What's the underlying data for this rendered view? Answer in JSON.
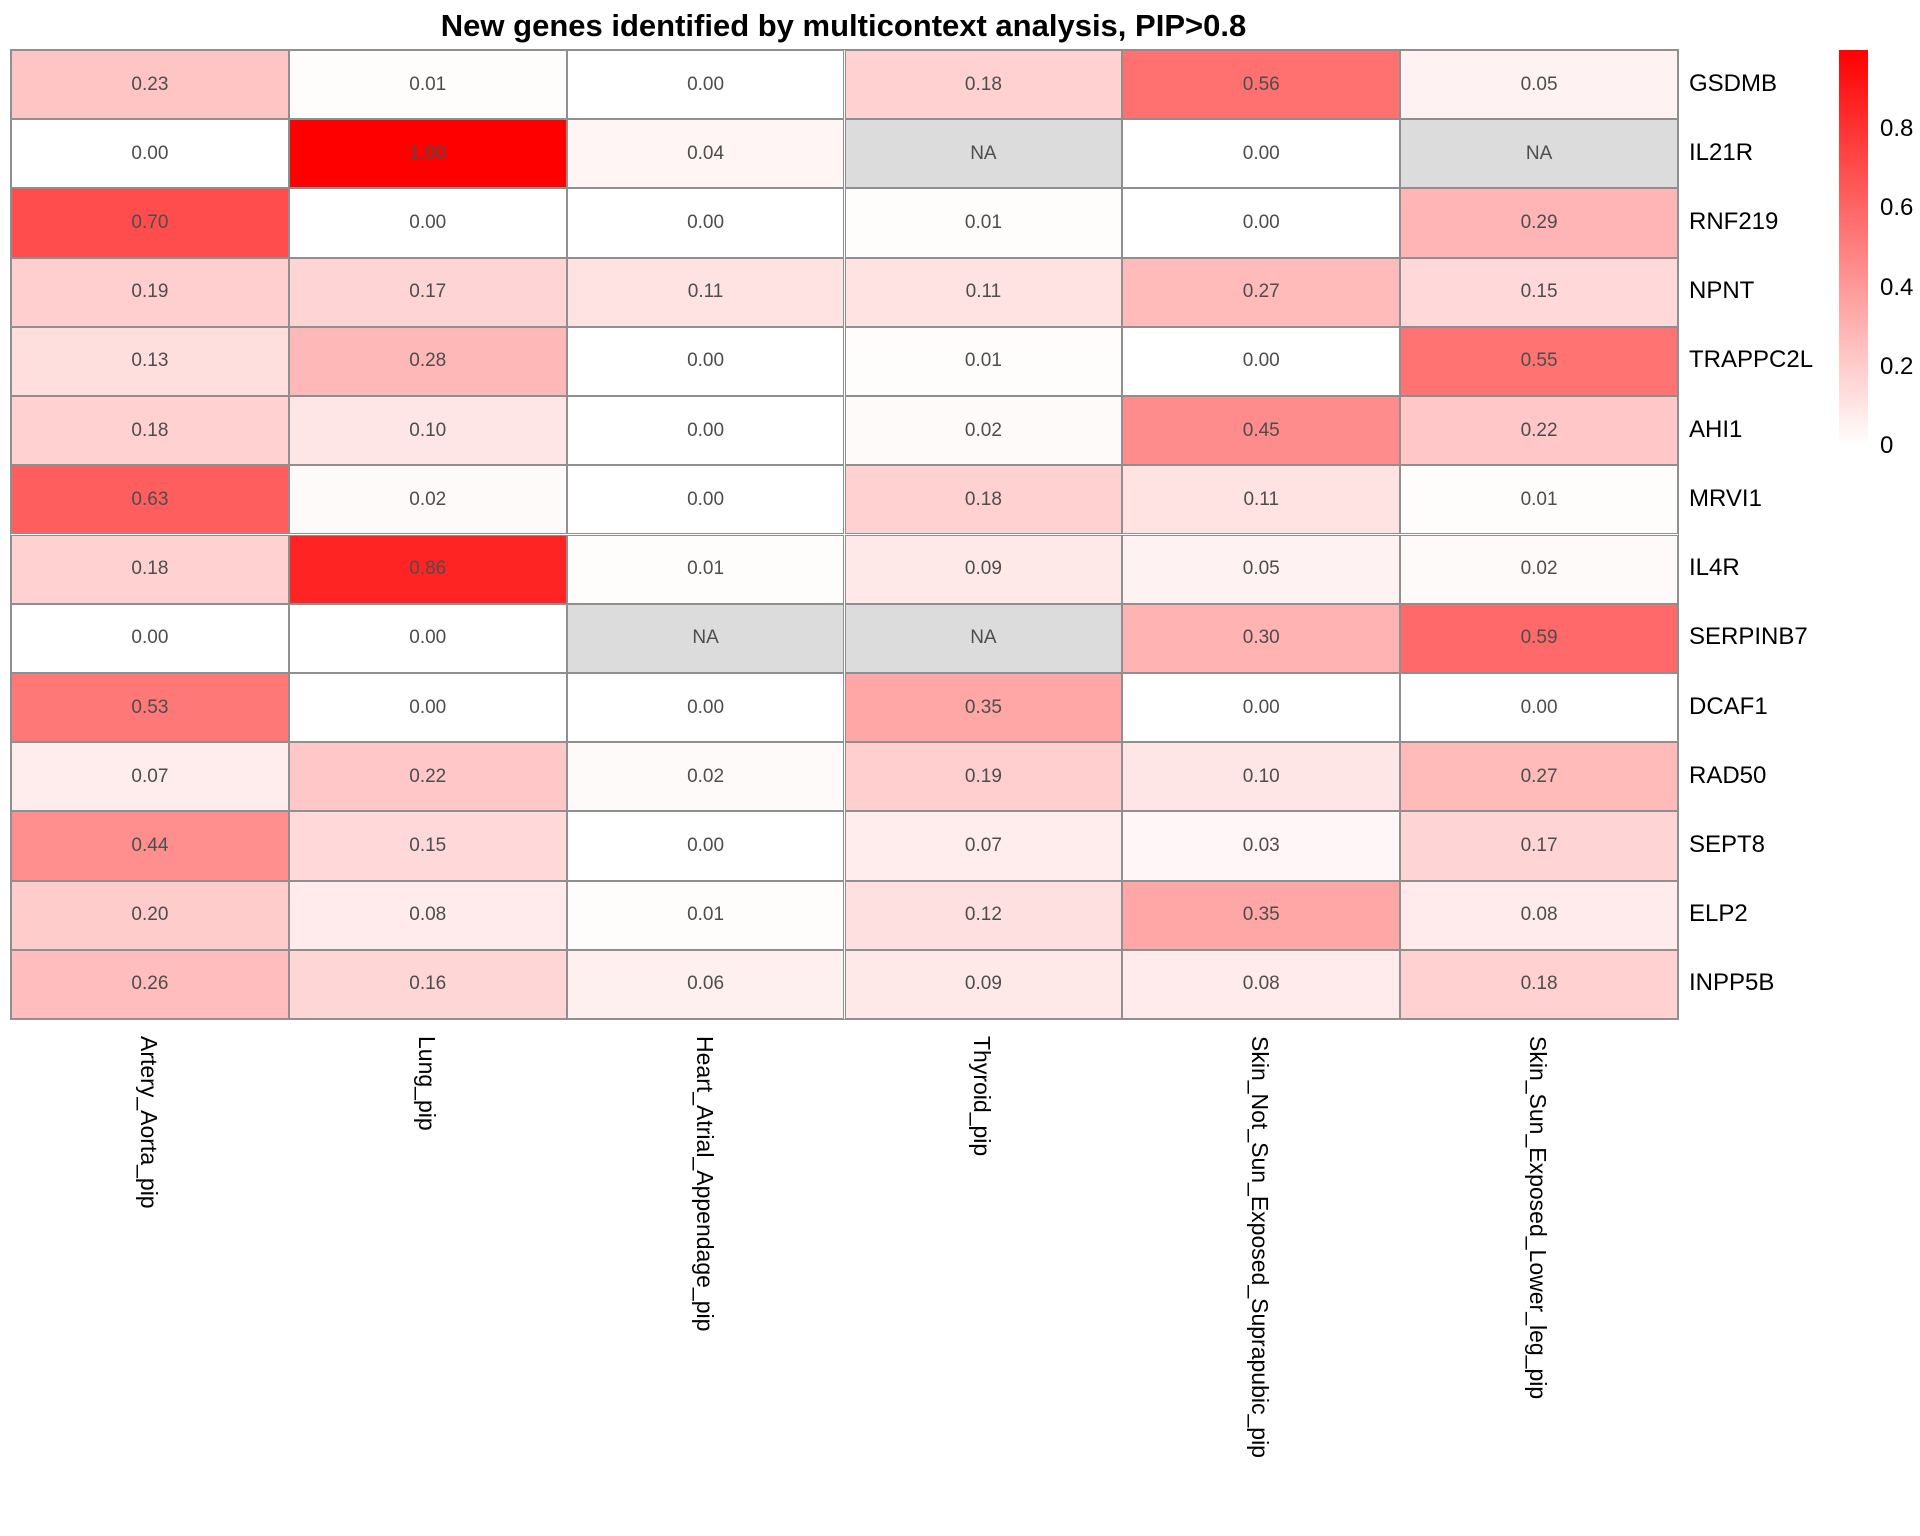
{
  "chart_data": {
    "type": "heatmap",
    "title": "New genes identified by multicontext analysis, PIP>0.8",
    "rows": [
      "GSDMB",
      "IL21R",
      "RNF219",
      "NPNT",
      "TRAPPC2L",
      "AHI1",
      "MRVI1",
      "IL4R",
      "SERPINB7",
      "DCAF1",
      "RAD50",
      "SEPT8",
      "ELP2",
      "INPP5B"
    ],
    "columns": [
      "Artery_Aorta_pip",
      "Lung_pip",
      "Heart_Atrial_Appendage_pip",
      "Thyroid_pip",
      "Skin_Not_Sun_Exposed_Suprapubic_pip",
      "Skin_Sun_Exposed_Lower_leg_pip"
    ],
    "values": [
      [
        0.23,
        0.01,
        0.0,
        0.18,
        0.56,
        0.05
      ],
      [
        0.0,
        1.0,
        0.04,
        null,
        0.0,
        null
      ],
      [
        0.7,
        0.0,
        0.0,
        0.01,
        0.0,
        0.29
      ],
      [
        0.19,
        0.17,
        0.11,
        0.11,
        0.27,
        0.15
      ],
      [
        0.13,
        0.28,
        0.0,
        0.01,
        0.0,
        0.55
      ],
      [
        0.18,
        0.1,
        0.0,
        0.02,
        0.45,
        0.22
      ],
      [
        0.63,
        0.02,
        0.0,
        0.18,
        0.11,
        0.01
      ],
      [
        0.18,
        0.86,
        0.01,
        0.09,
        0.05,
        0.02
      ],
      [
        0.0,
        0.0,
        null,
        null,
        0.3,
        0.59
      ],
      [
        0.53,
        0.0,
        0.0,
        0.35,
        0.0,
        0.0
      ],
      [
        0.07,
        0.22,
        0.02,
        0.19,
        0.1,
        0.27
      ],
      [
        0.44,
        0.15,
        0.0,
        0.07,
        0.03,
        0.17
      ],
      [
        0.2,
        0.08,
        0.01,
        0.12,
        0.35,
        0.08
      ],
      [
        0.26,
        0.16,
        0.06,
        0.09,
        0.08,
        0.18
      ]
    ],
    "na_label": "NA",
    "value_range": [
      0,
      1
    ],
    "legend": {
      "position": "right",
      "ticks": [
        "0.8",
        "0.6",
        "0.4",
        "0.2",
        "0"
      ]
    },
    "colors": {
      "min": "#FFFFFF",
      "max": "#FF0000",
      "na": "#DCDCDC",
      "border": "#8F8F8F",
      "cell_text": "#4D4D4D",
      "label_text": "#000000"
    },
    "grid": "on"
  }
}
